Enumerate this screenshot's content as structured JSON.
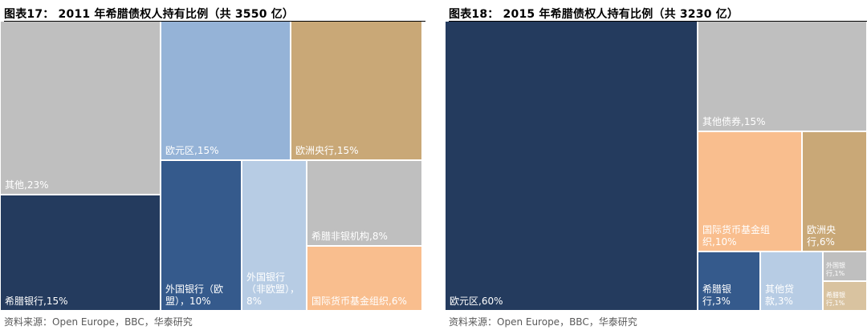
{
  "chart_data": [
    {
      "type": "treemap",
      "title": "图表17： 2011 年希腊债权人持有比例（共 3550 亿）",
      "source": "资料来源：Open Europe，BBC，华泰研究",
      "items": [
        {
          "name": "其他",
          "value": 23,
          "label": "其他,23%",
          "color": "#BFBFBF"
        },
        {
          "name": "希腊银行",
          "value": 15,
          "label": "希腊银行,15%",
          "color": "#243B5E"
        },
        {
          "name": "欧元区",
          "value": 15,
          "label": "欧元区,15%",
          "color": "#95B3D7"
        },
        {
          "name": "欧洲央行",
          "value": 15,
          "label": "欧洲央行,15%",
          "color": "#C9A877"
        },
        {
          "name": "外国银行（欧盟）",
          "value": 10,
          "label": "外国银行（欧盟），10%",
          "color": "#355A8C"
        },
        {
          "name": "外国银行（非欧盟）",
          "value": 8,
          "label": "外国银行（非欧盟），8%",
          "color": "#B7CCE4"
        },
        {
          "name": "希腊非银机构",
          "value": 8,
          "label": "希腊非银机构,8%",
          "color": "#BFBFBF"
        },
        {
          "name": "国际货币基金组织",
          "value": 6,
          "label": "国际货币基金组织,6%",
          "color": "#F9BE8E"
        }
      ]
    },
    {
      "type": "treemap",
      "title": "图表18： 2015 年希腊债权人持有比例（共 3230 亿）",
      "source": "资料来源：Open Europe，BBC，华泰研究",
      "items": [
        {
          "name": "欧元区",
          "value": 60,
          "label": "欧元区,60%",
          "color": "#243B5E"
        },
        {
          "name": "其他债券",
          "value": 15,
          "label": "其他债券,15%",
          "color": "#BFBFBF"
        },
        {
          "name": "国际货币基金组织",
          "value": 10,
          "label": "国际货币基金组织,10%",
          "color": "#F9BE8E"
        },
        {
          "name": "欧洲央行",
          "value": 6,
          "label": "欧洲央行,6%",
          "color": "#C9A877"
        },
        {
          "name": "希腊银行",
          "value": 3,
          "label": "希腊银行,3%",
          "color": "#355A8C"
        },
        {
          "name": "其他贷款",
          "value": 3,
          "label": "其他贷款,3%",
          "color": "#B7CCE4"
        },
        {
          "name": "外国银行",
          "value": 1,
          "label": "外国银行,1%",
          "color": "#BFBFBF"
        },
        {
          "name": "希腊银行",
          "value": 1,
          "label": "希腊银行,1%",
          "color": "#D9C3A0"
        }
      ]
    }
  ]
}
